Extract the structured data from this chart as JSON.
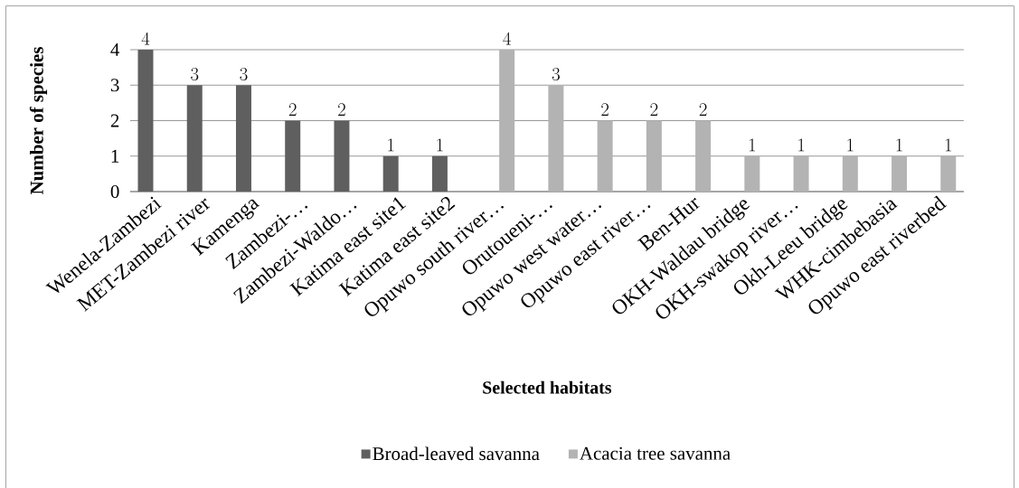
{
  "chart_data": {
    "type": "bar",
    "xlabel": "Selected habitats",
    "ylabel": "Number of species",
    "categories": [
      "Wenela-Zambezi",
      "MET-Zambezi river",
      "Kamenga",
      "Zambezi-…",
      "Zambezi-Waldo…",
      "Katima east site1",
      "Katima east site2",
      "Opuwo south river…",
      "Orutoueni-…",
      "Opuwo west water…",
      "Opuwo east river…",
      "Ben-Hur",
      "OKH-Waldau bridge",
      "OKH-swakop river…",
      "Okh-Leeu bridge",
      "WHK-cimbebasia",
      "Opuwo east riverbed"
    ],
    "series": [
      {
        "name": "Broad-leaved savanna",
        "color": "#5f5f5f",
        "values": [
          4,
          3,
          3,
          2,
          2,
          1,
          1,
          null,
          null,
          null,
          null,
          null,
          null,
          null,
          null,
          null,
          null
        ]
      },
      {
        "name": "Acacia tree savanna",
        "color": "#b3b3b3",
        "values": [
          null,
          null,
          null,
          null,
          null,
          null,
          null,
          4,
          3,
          2,
          2,
          2,
          1,
          1,
          1,
          1,
          1
        ]
      }
    ],
    "ylim": [
      0,
      4
    ],
    "yticks": [
      0,
      1,
      2,
      3,
      4
    ],
    "grid": "y",
    "legend": "bottom",
    "data_labels": true
  }
}
